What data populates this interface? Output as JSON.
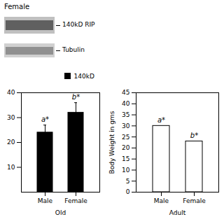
{
  "chart_data": [
    {
      "type": "western_blot",
      "title": "Female",
      "annotations": [
        "140kD RIP",
        "Tubulin"
      ]
    },
    {
      "type": "bar",
      "categories": [
        "Male",
        "Female"
      ],
      "series": [
        {
          "name": "140kD",
          "color": "black",
          "values": [
            24,
            32
          ],
          "errors": [
            3,
            4
          ]
        }
      ],
      "annotations": [
        "a*",
        "b*"
      ],
      "xlabel": "Old",
      "ylim": [
        0,
        40
      ],
      "yticks": [
        10,
        20,
        30,
        40
      ],
      "legend": "upper right"
    },
    {
      "type": "bar",
      "categories": [
        "Male",
        "Female"
      ],
      "values": [
        30,
        23
      ],
      "colors": [
        "white",
        "white"
      ],
      "annotations": [
        "a*",
        "b*"
      ],
      "xlabel": "Adult",
      "ylabel": "Body Weight in gms",
      "ylim": [
        0,
        45
      ],
      "yticks": [
        0,
        5,
        10,
        15,
        20,
        25,
        30,
        35,
        40,
        45
      ]
    }
  ]
}
